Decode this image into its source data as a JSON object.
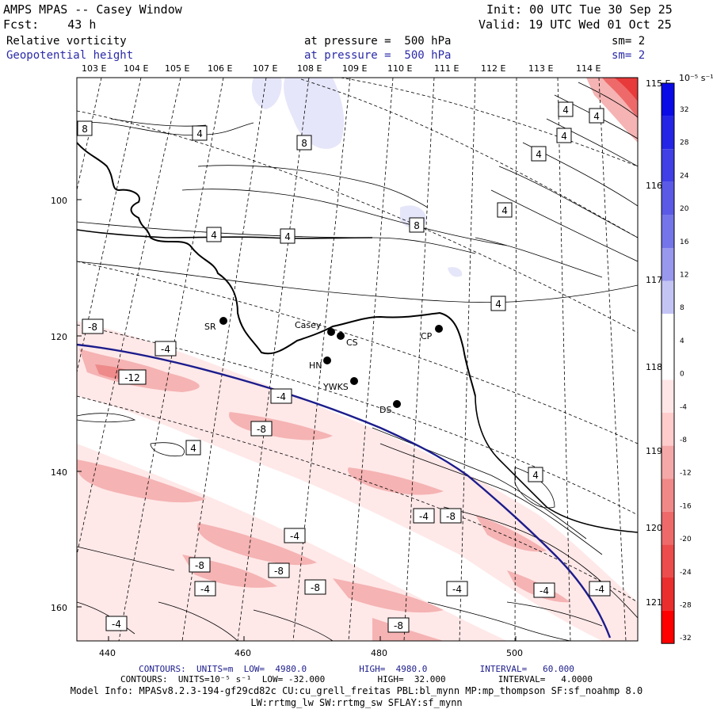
{
  "header": {
    "model": "AMPS MPAS -- Casey Window",
    "forecast": "Fcst:    43 h",
    "init": "Init: 00 UTC Tue 30 Sep 25",
    "valid": "Valid: 19 UTC Wed 01 Oct 25",
    "field1_name": "Relative vorticity",
    "field1_level": "at pressure =  500 hPa",
    "field1_sm": "sm= 2",
    "field2_name": "Geopotential height",
    "field2_level": "at pressure =  500 hPa",
    "field2_sm": "sm= 2"
  },
  "top_lon_labels": [
    "103 E",
    "104 E",
    "105 E",
    "106 E",
    "107 E",
    "108 E",
    "109 E",
    "110 E",
    "111 E",
    "112 E",
    "113 E",
    "114 E"
  ],
  "right_lon_labels": [
    "115 E",
    "116 E",
    "117 E",
    "118 E",
    "119 E",
    "120 E",
    "121 E"
  ],
  "y_axis_ticks": [
    "100",
    "120",
    "140",
    "160"
  ],
  "x_axis_ticks": [
    "440",
    "460",
    "480",
    "500"
  ],
  "stations": [
    {
      "name": "SR"
    },
    {
      "name": "Casey"
    },
    {
      "name": "CS"
    },
    {
      "name": "CP"
    },
    {
      "name": "HN"
    },
    {
      "name": "YWKS"
    },
    {
      "name": "DS"
    }
  ],
  "contour_labels": [
    "8",
    "4",
    "8",
    "4",
    "4",
    "4",
    "4",
    "4",
    "4",
    "8",
    "4",
    "4",
    "-8",
    "-4",
    "-12",
    "-4",
    "-8",
    "4",
    "4",
    "-4",
    "-4",
    "-8",
    "-8",
    "-8",
    "-4",
    "-8",
    "-4",
    "-4",
    "-4",
    "-8",
    "-4"
  ],
  "colorbar": {
    "unit": "10⁻⁵ s⁻¹",
    "labels": [
      "32",
      "28",
      "24",
      "20",
      "16",
      "12",
      "8",
      "4",
      "0",
      "-4",
      "-8",
      "-12",
      "-16",
      "-20",
      "-24",
      "-28",
      "-32"
    ],
    "colors": [
      "#0a0ae6",
      "#2424e6",
      "#4040e6",
      "#5a5ae6",
      "#7575ea",
      "#9898ee",
      "#c4c4f4",
      "#ffffff",
      "#ffffff",
      "#ffe6e6",
      "#ffcccc",
      "#f5a8a8",
      "#f08888",
      "#ee6a6a",
      "#ec4c4c",
      "#ea2e2e",
      "#ff0000"
    ]
  },
  "colors": {
    "height_contour": "#1c1c8c",
    "text_blue": "#2a2aa8",
    "vort_neg_light": "#ffe8e8",
    "vort_neg_mid": "#f5b3b3",
    "vort_pos_light": "#e6e6fa",
    "coast": "#000000"
  },
  "footer": {
    "line1": "CONTOURS:  UNITS=m  LOW=  4980.0          HIGH=  4980.0          INTERVAL=   60.000",
    "line2": "CONTOURS:  UNITS=10⁻⁵ s⁻¹  LOW= -32.000          HIGH=  32.000          INTERVAL=   4.0000",
    "line3": "Model Info: MPASv8.2.3-194-gf29cd82c CU:cu_grell_freitas PBL:bl_mynn MP:mp_thompson SF:sf_noahmp 8.0",
    "line4": "LW:rrtmg_lw SW:rrtmg_sw SFLAY:sf_mynn"
  }
}
